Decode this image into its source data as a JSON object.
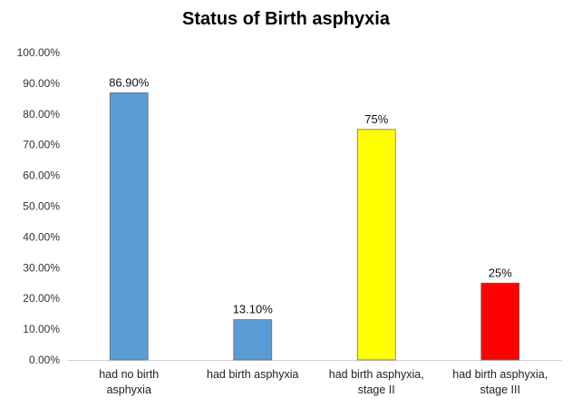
{
  "chart_data": {
    "type": "bar",
    "title": "Status of Birth asphyxia",
    "xlabel": "",
    "ylabel": "",
    "ylim": [
      0,
      100
    ],
    "yticks": [
      "0.00%",
      "10.00%",
      "20.00%",
      "30.00%",
      "40.00%",
      "50.00%",
      "60.00%",
      "70.00%",
      "80.00%",
      "90.00%",
      "100.00%"
    ],
    "categories": [
      [
        "had no birth",
        "asphyxia"
      ],
      [
        "had birth asphyxia"
      ],
      [
        "had birth asphyxia,",
        "stage II"
      ],
      [
        "had birth asphyxia,",
        "stage III"
      ]
    ],
    "values": [
      86.9,
      13.1,
      75,
      25
    ],
    "data_labels": [
      "86.90%",
      "13.10%",
      "75%",
      "25%"
    ],
    "colors": [
      "#5b9bd5",
      "#5b9bd5",
      "#ffff00",
      "#ff0000"
    ],
    "grid": false,
    "legend": "none"
  }
}
